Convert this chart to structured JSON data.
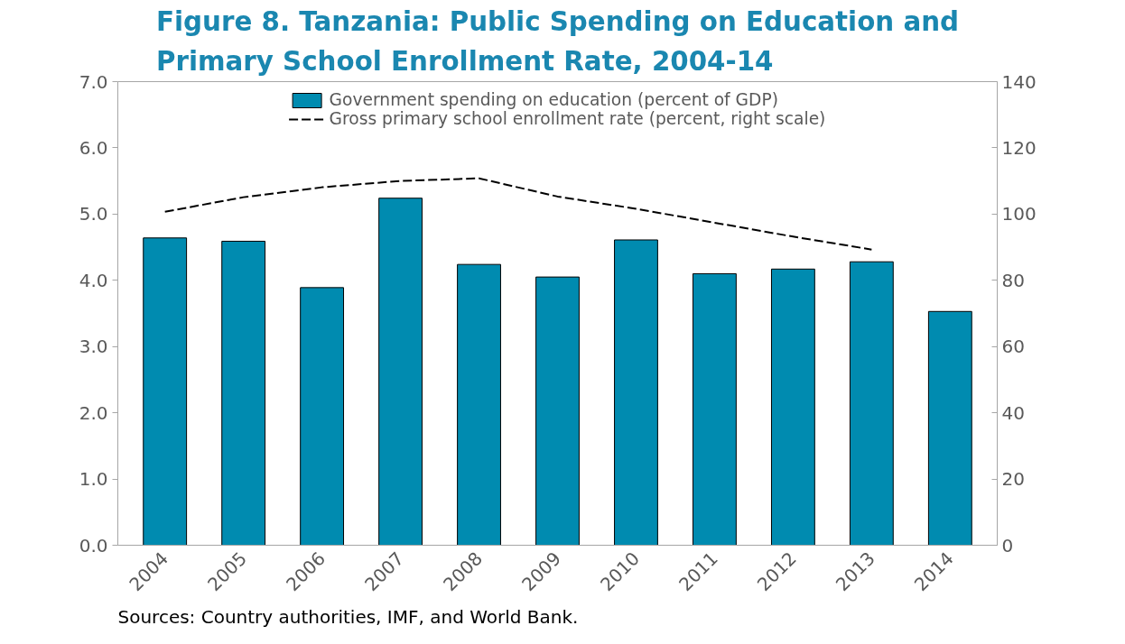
{
  "chart_data": {
    "type": "bar",
    "title": "Figure 8. Tanzania: Public Spending on Education and Primary School Enrollment Rate, 2004-14",
    "categories": [
      "2004",
      "2005",
      "2006",
      "2007",
      "2008",
      "2009",
      "2010",
      "2011",
      "2012",
      "2013",
      "2014"
    ],
    "series": [
      {
        "name": "Government spending on education (percent of GDP)",
        "color": "#008bb0",
        "values": [
          4.64,
          4.59,
          3.89,
          5.24,
          4.24,
          4.05,
          4.61,
          4.1,
          4.17,
          4.28,
          3.53
        ]
      },
      {
        "name": "Gross primary school enrollment rate (percent, right scale)",
        "type": "line",
        "axis": "y2",
        "color": "#000000",
        "line_style": "dashed",
        "values": [
          100.7,
          105.1,
          108.1,
          110.0,
          110.8,
          105.3,
          101.6,
          97.4,
          93.2,
          89.3,
          null
        ]
      }
    ],
    "ylim": [
      0,
      7
    ],
    "yticks": [
      {
        "value": 0,
        "label": "0.0"
      },
      {
        "value": 1,
        "label": "1.0"
      },
      {
        "value": 2,
        "label": "2.0"
      },
      {
        "value": 3,
        "label": "3.0"
      },
      {
        "value": 4,
        "label": "4.0"
      },
      {
        "value": 5,
        "label": "5.0"
      },
      {
        "value": 6,
        "label": "6.0"
      },
      {
        "value": 7,
        "label": "7.0"
      }
    ],
    "y2lim": [
      0,
      140
    ],
    "y2ticks": [
      0,
      20,
      40,
      60,
      80,
      100,
      120,
      140
    ],
    "legend": "top",
    "grid": false,
    "annotations": [
      "Sources: Country authorities, IMF, and World Bank."
    ]
  }
}
